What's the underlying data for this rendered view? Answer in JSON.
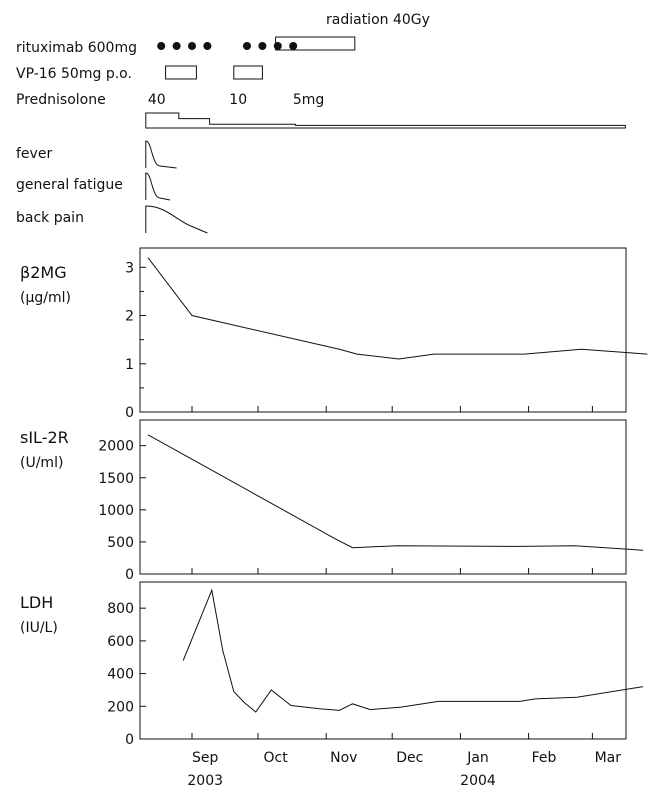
{
  "treatment": {
    "radiation": {
      "label": "radiation 40Gy",
      "start_day": 58,
      "end_day": 94
    },
    "rituximab": {
      "label": "rituximab 600mg",
      "dose_days": [
        6,
        13,
        20,
        27,
        45,
        52,
        59,
        66
      ]
    },
    "vp16": {
      "label": "VP-16 50mg p.o.",
      "courses": [
        [
          8,
          22
        ],
        [
          39,
          52
        ]
      ]
    },
    "prednisolone": {
      "label": "Prednisolone",
      "dose_labels": [
        {
          "text": "40",
          "day": 4
        },
        {
          "text": "10",
          "day": 41
        },
        {
          "text": "5mg",
          "day": 73
        }
      ],
      "steps": [
        {
          "start_day": -1,
          "end_day": 14,
          "dose": 40
        },
        {
          "start_day": 14,
          "end_day": 28,
          "dose": 25
        },
        {
          "start_day": 28,
          "end_day": 67,
          "dose": 10
        },
        {
          "start_day": 67,
          "end_day": 217,
          "dose": 5
        }
      ]
    }
  },
  "symptoms": [
    {
      "label": "fever",
      "end_day": 13
    },
    {
      "label": "general fatigue",
      "end_day": 10
    },
    {
      "label": "back pain",
      "end_day": 27
    }
  ],
  "x_axis": {
    "months": [
      "Sep",
      "Oct",
      "Nov",
      "Dec",
      "Jan",
      "Feb",
      "Mar"
    ],
    "years": [
      {
        "text": "2003",
        "under": "Sep"
      },
      {
        "text": "2004",
        "under": "Jan"
      }
    ]
  },
  "chart_data": [
    {
      "type": "line",
      "title": "β2MG",
      "unit": "(μg/ml)",
      "ylim": [
        0,
        3.4
      ],
      "yticks": [
        "0",
        "1",
        "2",
        "3"
      ],
      "x": [
        "2003-08-20",
        "2003-09-09",
        "2003-11-15",
        "2003-11-23",
        "2003-12-12",
        "2003-12-28",
        "2004-02-07",
        "2004-03-04",
        "2004-04-03"
      ],
      "values": [
        3.2,
        2.0,
        1.3,
        1.2,
        1.1,
        1.2,
        1.2,
        1.3,
        1.2
      ]
    },
    {
      "type": "line",
      "title": "sIL-2R",
      "unit": "(U/ml)",
      "ylim": [
        0,
        2400
      ],
      "yticks": [
        "0",
        "500",
        "1000",
        "1500",
        "2000"
      ],
      "x": [
        "2003-08-20",
        "2003-11-13",
        "2003-11-21",
        "2003-12-11",
        "2004-02-05",
        "2004-03-01",
        "2004-04-01"
      ],
      "values": [
        2170,
        550,
        410,
        440,
        430,
        440,
        370
      ]
    },
    {
      "type": "line",
      "title": "LDH",
      "unit": "(IU/L)",
      "ylim": [
        0,
        960
      ],
      "yticks": [
        "0",
        "200",
        "400",
        "600",
        "800"
      ],
      "x": [
        "2003-09-05",
        "2003-09-18",
        "2003-09-23",
        "2003-09-28",
        "2003-10-03",
        "2003-10-08",
        "2003-10-15",
        "2003-10-24",
        "2003-11-06",
        "2003-11-15",
        "2003-11-21",
        "2003-11-29",
        "2003-12-13",
        "2003-12-30",
        "2004-02-05",
        "2004-02-12",
        "2004-03-02",
        "2004-04-01"
      ],
      "values": [
        480,
        910,
        540,
        290,
        220,
        165,
        300,
        205,
        185,
        175,
        215,
        180,
        195,
        230,
        230,
        245,
        255,
        320
      ]
    }
  ]
}
